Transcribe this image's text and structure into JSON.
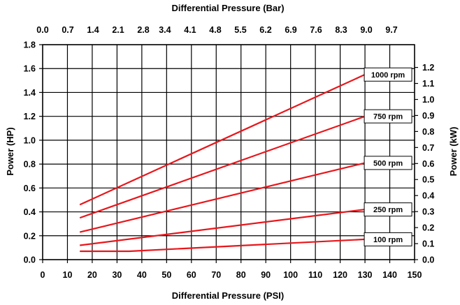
{
  "chart_data": {
    "type": "line",
    "title": "",
    "xlabel": "Differential Pressure (PSI)",
    "x2label": "Differential Pressure (Bar)",
    "ylabel": "Power (HP)",
    "y2label": "Power (kW)",
    "xlim": [
      0,
      150
    ],
    "ylim": [
      0,
      1.8
    ],
    "x2lim": [
      0,
      10.34
    ],
    "y2lim": [
      0,
      1.342
    ],
    "grid": true,
    "legend": "inline-right",
    "line_color": "#e8161b",
    "x_ticks": [
      "0",
      "10",
      "20",
      "30",
      "40",
      "50",
      "60",
      "70",
      "80",
      "90",
      "100",
      "110",
      "120",
      "130",
      "140",
      "150"
    ],
    "x2_ticks": [
      "0.0",
      "0.7",
      "1.4",
      "2.1",
      "2.8",
      "3.4",
      "4.1",
      "4.8",
      "5.5",
      "6.2",
      "6.9",
      "7.6",
      "8.3",
      "9.0",
      "9.7"
    ],
    "y_ticks": [
      "0.0",
      "0.2",
      "0.4",
      "0.6",
      "0.8",
      "1.0",
      "1.2",
      "1.4",
      "1.6",
      "1.8"
    ],
    "y2_ticks": [
      "0.0",
      "0.1",
      "0.2",
      "0.3",
      "0.4",
      "0.5",
      "0.6",
      "0.7",
      "0.8",
      "0.9",
      "1.0",
      "1.1",
      "1.2"
    ],
    "series": [
      {
        "name": "1000 rpm",
        "points": [
          [
            15,
            0.46
          ],
          [
            130,
            1.55
          ]
        ]
      },
      {
        "name": "750 rpm",
        "points": [
          [
            15,
            0.35
          ],
          [
            130,
            1.2
          ]
        ]
      },
      {
        "name": "500 rpm",
        "points": [
          [
            15,
            0.23
          ],
          [
            130,
            0.81
          ]
        ]
      },
      {
        "name": "250 rpm",
        "points": [
          [
            15,
            0.12
          ],
          [
            130,
            0.42
          ]
        ]
      },
      {
        "name": "100 rpm",
        "points": [
          [
            15,
            0.07
          ],
          [
            35,
            0.07
          ],
          [
            130,
            0.17
          ]
        ]
      }
    ]
  }
}
